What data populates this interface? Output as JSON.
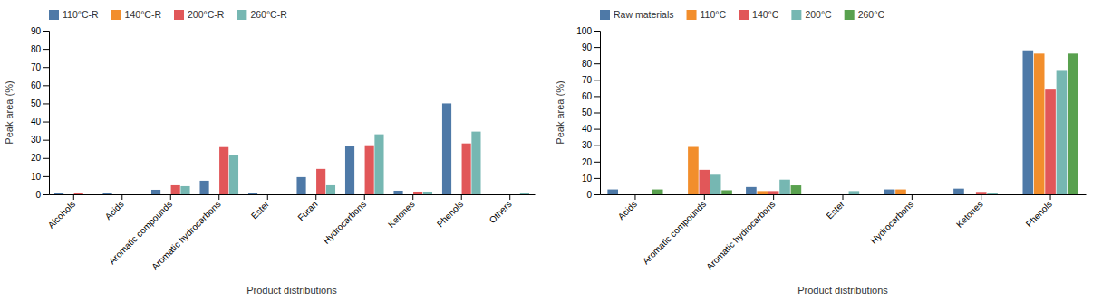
{
  "chart_data": [
    {
      "type": "bar",
      "xlabel": "Product distributions",
      "ylabel": "Peak area (%)",
      "categories": [
        "Alcohols",
        "Acids",
        "Aromatic compounds",
        "Aromatic hydrocarbons",
        "Ester",
        "Furan",
        "Hydrocarbons",
        "Ketones",
        "Phenols",
        "Others"
      ],
      "series": [
        {
          "name": "110°C-R",
          "values": [
            0.5,
            0.5,
            2.5,
            7.5,
            0.5,
            9.5,
            26.5,
            2.0,
            50.0,
            0.0
          ]
        },
        {
          "name": "140°C-R",
          "values": [
            0.0,
            0.0,
            0.0,
            0.0,
            0.0,
            0.0,
            0.0,
            0.0,
            0.0,
            0.0
          ]
        },
        {
          "name": "200°C-R",
          "values": [
            1.0,
            0.0,
            5.0,
            26.0,
            0.0,
            14.0,
            27.0,
            1.5,
            28.0,
            0.0
          ]
        },
        {
          "name": "260°C-R",
          "values": [
            0.0,
            0.0,
            4.5,
            21.5,
            0.0,
            5.0,
            33.0,
            1.5,
            34.5,
            1.0
          ]
        }
      ],
      "ylim": [
        0,
        90
      ],
      "yticks": [
        0,
        10,
        20,
        30,
        40,
        50,
        60,
        70,
        80,
        90
      ],
      "grid": false,
      "legend": "top-left"
    },
    {
      "type": "bar",
      "xlabel": "Product distributions",
      "ylabel": "Peak area (%)",
      "categories": [
        "Acids",
        "Aromatic compounds",
        "Aromatic hydrocarbons",
        "Ester",
        "Hydrocarbons",
        "Ketones",
        "Phenols"
      ],
      "series": [
        {
          "name": "Raw materials",
          "values": [
            3.0,
            0.0,
            4.5,
            0.0,
            3.0,
            3.5,
            88.0
          ]
        },
        {
          "name": "110°C",
          "values": [
            0.0,
            29.0,
            2.0,
            0.0,
            3.0,
            0.0,
            86.0
          ]
        },
        {
          "name": "140°C",
          "values": [
            0.0,
            15.0,
            2.0,
            0.0,
            0.0,
            1.5,
            64.0
          ]
        },
        {
          "name": "200°C",
          "values": [
            0.0,
            12.0,
            9.0,
            2.0,
            0.0,
            1.0,
            76.0
          ]
        },
        {
          "name": "260°C",
          "values": [
            3.0,
            2.5,
            5.5,
            0.0,
            0.0,
            0.0,
            86.0
          ]
        }
      ],
      "ylim": [
        0,
        100
      ],
      "yticks": [
        0,
        10,
        20,
        30,
        40,
        50,
        60,
        70,
        80,
        90,
        100
      ],
      "grid": false,
      "legend": "top-left"
    }
  ]
}
